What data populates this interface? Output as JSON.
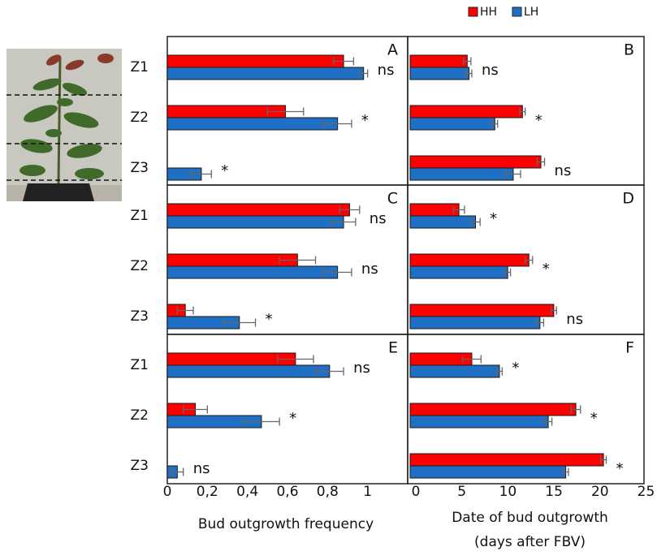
{
  "legend": {
    "entries": [
      {
        "name": "HH",
        "color": "#ff0000"
      },
      {
        "name": "LH",
        "color": "#1f6fc5"
      }
    ]
  },
  "chart_data": [
    {
      "type": "bar",
      "orientation": "horizontal",
      "label": "A",
      "categories": [
        "Z1",
        "Z2",
        "Z3"
      ],
      "xlim": [
        0,
        1.2
      ],
      "series": [
        {
          "values": [
            0.88,
            0.59,
            0
          ],
          "errors": [
            0.05,
            0.09,
            null
          ]
        },
        {
          "values": [
            0.98,
            0.85,
            0.17
          ],
          "errors": [
            0.02,
            0.07,
            0.05
          ]
        }
      ],
      "annotations": [
        "ns",
        "*",
        "*"
      ]
    },
    {
      "type": "bar",
      "orientation": "horizontal",
      "label": "B",
      "xlim": [
        0,
        25.4
      ],
      "series": [
        {
          "values": [
            6.2,
            12.2,
            14.2
          ],
          "errors": [
            0.4,
            0.3,
            0.4
          ]
        },
        {
          "values": [
            6.4,
            9.2,
            11.2
          ],
          "errors": [
            0.3,
            0.3,
            0.8
          ]
        }
      ],
      "annotations": [
        "ns",
        "*",
        "ns"
      ]
    },
    {
      "type": "bar",
      "orientation": "horizontal",
      "label": "C",
      "categories": [
        "Z1",
        "Z2",
        "Z3"
      ],
      "xlim": [
        0,
        1.2
      ],
      "series": [
        {
          "values": [
            0.91,
            0.65,
            0.09
          ],
          "errors": [
            0.05,
            0.09,
            0.04
          ]
        },
        {
          "values": [
            0.88,
            0.85,
            0.36
          ],
          "errors": [
            0.06,
            0.07,
            0.08
          ]
        }
      ],
      "annotations": [
        "ns",
        "ns",
        "*"
      ]
    },
    {
      "type": "bar",
      "orientation": "horizontal",
      "label": "D",
      "xlim": [
        0,
        25.4
      ],
      "series": [
        {
          "values": [
            5.3,
            12.9,
            15.6
          ],
          "errors": [
            0.6,
            0.4,
            0.3
          ]
        },
        {
          "values": [
            7.1,
            10.6,
            14.1
          ],
          "errors": [
            0.5,
            0.3,
            0.4
          ]
        }
      ],
      "annotations": [
        "*",
        "*",
        "ns"
      ]
    },
    {
      "type": "bar",
      "orientation": "horizontal",
      "label": "E",
      "categories": [
        "Z1",
        "Z2",
        "Z3"
      ],
      "xlim": [
        0,
        1.2
      ],
      "xticks": [
        0,
        {
          "value": 0.2,
          "label": "0,2"
        },
        {
          "value": 0.4,
          "label": "0,4"
        },
        {
          "value": 0.6,
          "label": "0,6"
        },
        {
          "value": 0.8,
          "label": "0,8"
        },
        1
      ],
      "xlabel": "Bud outgrowth frequency",
      "series": [
        {
          "values": [
            0.64,
            0.14,
            0
          ],
          "errors": [
            0.09,
            0.06,
            null
          ]
        },
        {
          "values": [
            0.81,
            0.47,
            0.05
          ],
          "errors": [
            0.07,
            0.09,
            0.03
          ]
        }
      ],
      "annotations": [
        "ns",
        "*",
        "ns"
      ]
    },
    {
      "type": "bar",
      "orientation": "horizontal",
      "label": "F",
      "xlim": [
        0,
        25.4
      ],
      "xticks": [
        0,
        5,
        10,
        15,
        20,
        25
      ],
      "xlabel": [
        "Date of bud outgrowth",
        "(days after FBV)"
      ],
      "series": [
        {
          "values": [
            6.7,
            18.0,
            21.0
          ],
          "errors": [
            1.0,
            0.5,
            0.3
          ]
        },
        {
          "values": [
            9.7,
            15.0,
            16.9
          ],
          "errors": [
            0.3,
            0.4,
            0.3
          ]
        }
      ],
      "annotations": [
        "*",
        "*",
        "*"
      ]
    }
  ]
}
